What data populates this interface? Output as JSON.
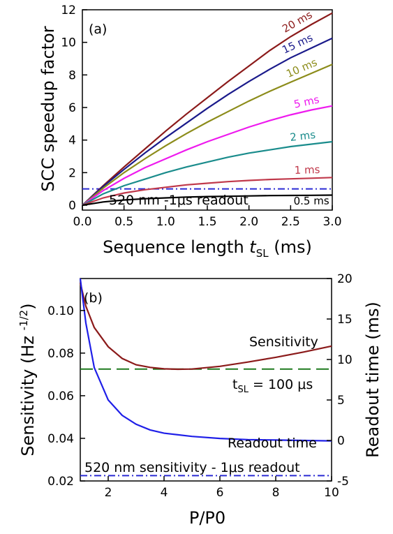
{
  "chart_data": [
    {
      "type": "line",
      "panel": "(a)",
      "xlabel_main": "Sequence length ",
      "xlabel_italic": "t",
      "xlabel_sub": "SL",
      "xlabel_unit": " (ms)",
      "ylabel": "SCC speedup factor",
      "xlim": [
        0.0,
        3.0
      ],
      "ylim": [
        -0.3,
        12
      ],
      "xticks": [
        "0.0",
        "0.5",
        "1.0",
        "1.5",
        "2.0",
        "2.5",
        "3.0"
      ],
      "xtick_values": [
        0.0,
        0.5,
        1.0,
        1.5,
        2.0,
        2.5,
        3.0
      ],
      "yticks": [
        "0",
        "2",
        "4",
        "6",
        "8",
        "10",
        "12"
      ],
      "ytick_values": [
        0,
        2,
        4,
        6,
        8,
        10,
        12
      ],
      "annotation": "520 nm -1μs readout",
      "reference_line": {
        "y": 1.0,
        "style": "dash-dot",
        "color": "#2b2bd4"
      },
      "x": [
        0.0,
        0.25,
        0.5,
        0.75,
        1.0,
        1.25,
        1.5,
        1.75,
        2.0,
        2.25,
        2.5,
        2.75,
        3.0
      ],
      "series": [
        {
          "name": "20 ms",
          "color": "#8b1a1a",
          "values": [
            0.0,
            1.2,
            2.35,
            3.45,
            4.55,
            5.6,
            6.6,
            7.6,
            8.55,
            9.5,
            10.35,
            11.1,
            11.8
          ]
        },
        {
          "name": "15 ms",
          "color": "#1a1a8b",
          "values": [
            0.0,
            1.15,
            2.2,
            3.2,
            4.15,
            5.05,
            5.95,
            6.8,
            7.6,
            8.35,
            9.05,
            9.65,
            10.25
          ]
        },
        {
          "name": "10 ms",
          "color": "#8c8c1a",
          "values": [
            0.0,
            1.05,
            2.0,
            2.85,
            3.65,
            4.4,
            5.1,
            5.75,
            6.4,
            7.0,
            7.55,
            8.1,
            8.65
          ]
        },
        {
          "name": "5 ms",
          "color": "#ee1aee",
          "values": [
            0.0,
            0.9,
            1.65,
            2.3,
            2.85,
            3.4,
            3.9,
            4.35,
            4.8,
            5.2,
            5.55,
            5.85,
            6.1
          ]
        },
        {
          "name": "2 ms",
          "color": "#1a8c8c",
          "values": [
            0.0,
            0.7,
            1.2,
            1.6,
            2.0,
            2.35,
            2.65,
            2.95,
            3.2,
            3.4,
            3.6,
            3.75,
            3.9
          ]
        },
        {
          "name": "1 ms",
          "color": "#c0394b",
          "values": [
            0.0,
            0.45,
            0.75,
            0.95,
            1.1,
            1.25,
            1.35,
            1.45,
            1.52,
            1.58,
            1.62,
            1.66,
            1.7
          ]
        },
        {
          "name": "0.5 ms",
          "color": "#000000",
          "values": [
            0.0,
            0.2,
            0.32,
            0.4,
            0.45,
            0.5,
            0.53,
            0.55,
            0.57,
            0.59,
            0.6,
            0.61,
            0.62
          ]
        }
      ]
    },
    {
      "type": "line",
      "panel": "(b)",
      "xlabel": "P/P0",
      "ylabel_left_main": "Sensitivity (Hz ",
      "ylabel_left_exp": "-1/2",
      "ylabel_left_close": ")",
      "ylabel_right": "Readout time (ms)",
      "xlim": [
        1,
        10
      ],
      "ylim_left": [
        0.02,
        0.115
      ],
      "ylim_right": [
        -5,
        20
      ],
      "xticks": [
        "2",
        "4",
        "6",
        "8",
        "10"
      ],
      "xtick_values": [
        2,
        4,
        6,
        8,
        10
      ],
      "yticks_left": [
        "0.02",
        "0.04",
        "0.06",
        "0.08",
        "0.10"
      ],
      "ytick_left_values": [
        0.02,
        0.04,
        0.06,
        0.08,
        0.1
      ],
      "yticks_right": [
        "-5",
        "0",
        "5",
        "10",
        "15",
        "20"
      ],
      "ytick_right_values": [
        -5,
        0,
        5,
        10,
        15,
        20
      ],
      "annotations": {
        "sensitivity_label": "Sensitivity",
        "tsl_prefix": "t",
        "tsl_sub": "SL",
        "tsl_suffix": " = 100 μs",
        "readout_label": "Readout time",
        "bottom_label": "520 nm sensitivity - 1μs readout"
      },
      "reference_lines": [
        {
          "axis": "left",
          "y": 0.0725,
          "style": "dashed",
          "color": "#1f7a1f"
        },
        {
          "axis": "left",
          "y": 0.0225,
          "style": "dash-dot",
          "color": "#2b2bd4"
        }
      ],
      "series": [
        {
          "name": "Sensitivity",
          "axis": "left",
          "color": "#8b1a1a",
          "x": [
            1.0,
            1.2,
            1.5,
            2.0,
            2.5,
            3.0,
            3.5,
            4.0,
            4.5,
            5.0,
            6.0,
            7.0,
            8.0,
            9.0,
            10.0
          ],
          "values": [
            0.113,
            0.102,
            0.092,
            0.083,
            0.0775,
            0.0745,
            0.0733,
            0.0726,
            0.0724,
            0.0725,
            0.0738,
            0.0758,
            0.078,
            0.0805,
            0.0833
          ]
        },
        {
          "name": "Readout time",
          "axis": "right",
          "color": "#1f1fe8",
          "x": [
            1.0,
            1.2,
            1.5,
            2.0,
            2.5,
            3.0,
            3.5,
            4.0,
            5.0,
            6.0,
            7.0,
            8.0,
            9.0,
            10.0
          ],
          "values": [
            20.0,
            14.5,
            9.0,
            5.0,
            3.1,
            2.0,
            1.3,
            0.9,
            0.5,
            0.25,
            0.1,
            0.05,
            0.0,
            -0.05
          ]
        }
      ]
    }
  ]
}
